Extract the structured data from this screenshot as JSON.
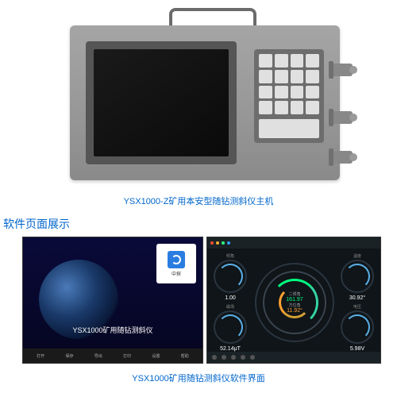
{
  "device": {
    "caption": "YSX1000-Z矿用本安型随钻测斜仪主机",
    "body_color": "#999999",
    "screen_color": "#0a0a0a",
    "keypad_rows": 4,
    "keypad_cols": 4,
    "connectors": 3
  },
  "section_title": "软件页面展示",
  "splash": {
    "title": "YSX1000矿用随钻测斜仪",
    "logo_label": "中探",
    "bg_color": "#0a0a3a",
    "toolbar_items": [
      "打开",
      "保存",
      "导出",
      "打印",
      "设置",
      "帮助"
    ]
  },
  "dashboard": {
    "bg_color": "#0f1518",
    "header_dots": [
      "#ff5030",
      "#ffb030",
      "#30ff80",
      "#30a0ff"
    ],
    "center": {
      "label1": "二倾角",
      "value1": "161.97",
      "label2": "方位角",
      "value2": "11.92°",
      "ring_color_1": "#00ff80",
      "ring_color_2": "#ffa030"
    },
    "gauges": {
      "top_left": {
        "label": "倾角",
        "value": "1.00"
      },
      "top_right": {
        "label": "温度",
        "value": "30.92°"
      },
      "bot_left": {
        "label": "磁场",
        "value": "52.14μT"
      },
      "bot_right": {
        "label": "电压",
        "value": "5.98V"
      }
    },
    "gauge_accent": "#5ab0e8"
  },
  "caption2": "YSX1000矿用随钻测斜仪软件界面",
  "colors": {
    "link_blue": "#0066cc"
  }
}
